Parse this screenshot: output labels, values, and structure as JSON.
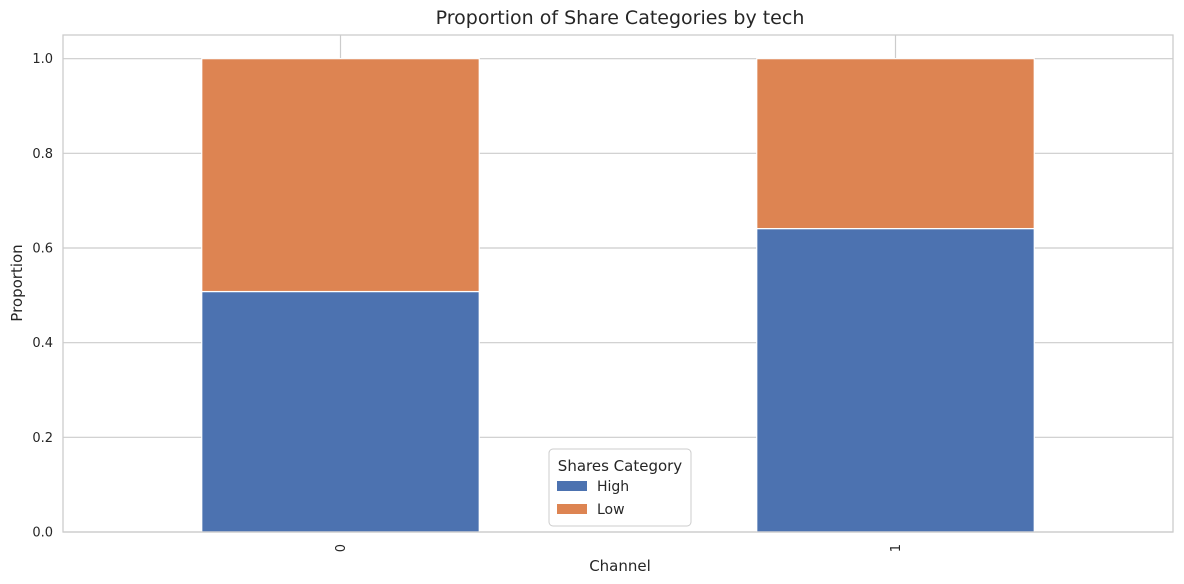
{
  "chart_data": {
    "type": "bar",
    "stacked": true,
    "title": "Proportion of Share Categories by tech",
    "xlabel": "Channel",
    "ylabel": "Proportion",
    "categories": [
      "0",
      "1"
    ],
    "series": [
      {
        "name": "High",
        "values": [
          0.508,
          0.641
        ],
        "color": "#4c72b0"
      },
      {
        "name": "Low",
        "values": [
          0.492,
          0.359
        ],
        "color": "#dd8452"
      }
    ],
    "ylim": [
      0,
      1.05
    ],
    "yticks": [
      "0.0",
      "0.2",
      "0.4",
      "0.6",
      "0.8",
      "1.0"
    ],
    "grid": true,
    "legend": {
      "title": "Shares Category",
      "placement": "bottom-center"
    }
  }
}
